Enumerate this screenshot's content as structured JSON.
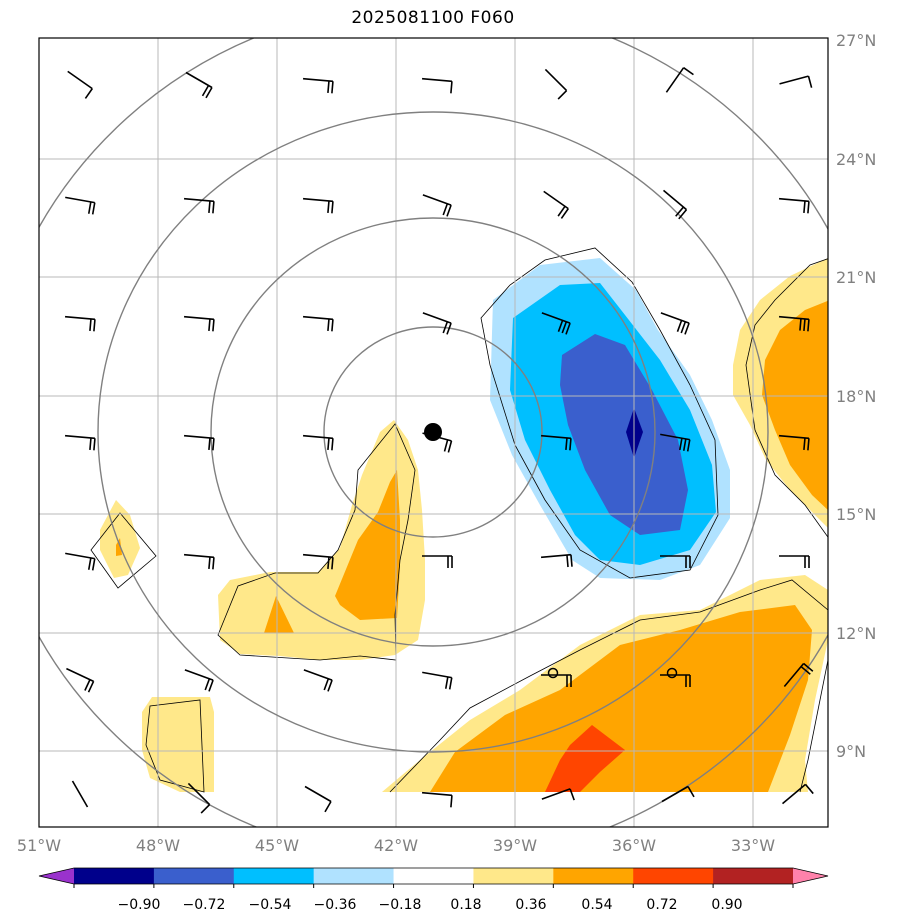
{
  "title": "2025081100 F060",
  "lon_labels": [
    "51°W",
    "48°W",
    "45°W",
    "42°W",
    "39°W",
    "36°W",
    "33°W"
  ],
  "lon_values": [
    -51,
    -48,
    -45,
    -42,
    -39,
    -36,
    -33
  ],
  "lat_labels": [
    "27°N",
    "24°N",
    "21°N",
    "18°N",
    "15°N",
    "12°N",
    "9°N"
  ],
  "lat_values": [
    27,
    24,
    21,
    18,
    15,
    12,
    9
  ],
  "extent": {
    "lon_min": -51,
    "lon_max": -31,
    "lat_min": 7,
    "lat_max": 27
  },
  "colorbar": {
    "ticks": [
      "−0.90",
      "−0.72",
      "−0.54",
      "−0.36",
      "−0.18",
      "0.18",
      "0.36",
      "0.54",
      "0.72",
      "0.90"
    ],
    "bins": [
      {
        "label": "< -0.90",
        "color": "#9a32cd"
      },
      {
        "label": "-0.90..-0.72",
        "color": "#00008b"
      },
      {
        "label": "-0.72..-0.54",
        "color": "#3a5fcd"
      },
      {
        "label": "-0.54..-0.36",
        "color": "#00bfff"
      },
      {
        "label": "-0.36..-0.18",
        "color": "#b0e2ff"
      },
      {
        "label": "-0.18..0.18",
        "color": "#ffffff"
      },
      {
        "label": "0.18..0.36",
        "color": "#ffe88a"
      },
      {
        "label": "0.36..0.54",
        "color": "#ffa500"
      },
      {
        "label": "0.54..0.72",
        "color": "#ff4500"
      },
      {
        "label": "0.72..0.90",
        "color": "#b22222"
      },
      {
        "label": "> 0.90",
        "color": "#ff82ab"
      }
    ]
  },
  "storm_center": {
    "lon": -40.9,
    "lat": 17.1
  },
  "range_rings_deg": [
    3,
    6,
    9,
    12
  ],
  "small_circles": [
    {
      "lon": -38,
      "lat": 10.9
    },
    {
      "lon": -35,
      "lat": 10.9
    }
  ]
}
